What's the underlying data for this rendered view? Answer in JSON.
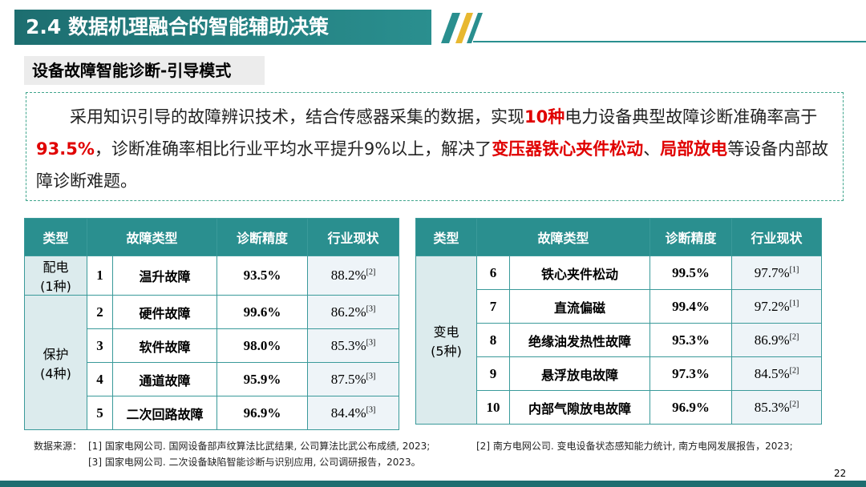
{
  "header": {
    "title": "2.4 数据机理融合的智能辅助决策",
    "subtitle": "设备故障智能诊断-引导模式"
  },
  "paragraph": {
    "segments": [
      {
        "text": "采用知识引导的故障辨识技术，结合传感器采集的数据，实现",
        "highlight": false
      },
      {
        "text": "10种",
        "highlight": true
      },
      {
        "text": "电力设备典型故障诊断准确率高于",
        "highlight": false
      },
      {
        "text": "93.5%",
        "highlight": true
      },
      {
        "text": "，诊断准确率相比行业平均水平提升9%以上，解决了",
        "highlight": false
      },
      {
        "text": "变压器铁心夹件松动",
        "highlight": true
      },
      {
        "text": "、",
        "highlight": false
      },
      {
        "text": "局部放电",
        "highlight": true
      },
      {
        "text": "等设备内部故障诊断难题。",
        "highlight": false
      }
    ]
  },
  "tables": [
    {
      "header": [
        "类型",
        "故障类型",
        "诊断精度",
        "行业现状"
      ],
      "groups": [
        {
          "label": [
            "配电",
            "(1种)"
          ],
          "rows": [
            {
              "no": "1",
              "fault": "温升故障",
              "accuracy": "93.5%",
              "industry": "88.2%",
              "ref": "[2]"
            }
          ]
        },
        {
          "label": [
            "保护",
            "(4种)"
          ],
          "rows": [
            {
              "no": "2",
              "fault": "硬件故障",
              "accuracy": "99.6%",
              "industry": "86.2%",
              "ref": "[3]"
            },
            {
              "no": "3",
              "fault": "软件故障",
              "accuracy": "98.0%",
              "industry": "85.3%",
              "ref": "[3]"
            },
            {
              "no": "4",
              "fault": "通道故障",
              "accuracy": "95.9%",
              "industry": "87.5%",
              "ref": "[3]"
            },
            {
              "no": "5",
              "fault": "二次回路故障",
              "accuracy": "96.9%",
              "industry": "84.4%",
              "ref": "[3]"
            }
          ]
        }
      ]
    },
    {
      "header": [
        "类型",
        "故障类型",
        "诊断精度",
        "行业现状"
      ],
      "groups": [
        {
          "label": [
            "变电",
            "(5种)"
          ],
          "rows": [
            {
              "no": "6",
              "fault": "铁心夹件松动",
              "accuracy": "99.5%",
              "industry": "97.7%",
              "ref": "[1]"
            },
            {
              "no": "7",
              "fault": "直流偏磁",
              "accuracy": "99.4%",
              "industry": "97.2%",
              "ref": "[1]"
            },
            {
              "no": "8",
              "fault": "绝缘油发热性故障",
              "accuracy": "95.3%",
              "industry": "86.9%",
              "ref": "[2]"
            },
            {
              "no": "9",
              "fault": "悬浮放电故障",
              "accuracy": "97.3%",
              "industry": "84.5%",
              "ref": "[2]"
            },
            {
              "no": "10",
              "fault": "内部气隙放电故障",
              "accuracy": "96.9%",
              "industry": "85.3%",
              "ref": "[2]"
            }
          ]
        }
      ]
    }
  ],
  "sources": {
    "label": "数据来源：",
    "items": [
      "[1] 国家电网公司. 国网设备部声纹算法比武结果, 公司算法比武公布成绩, 2023;",
      "[2] 南方电网公司. 变电设备状态感知能力统计, 南方电网发展报告，2023;",
      "[3] 国家电网公司. 二次设备缺陷智能诊断与识别应用, 公司调研报告，2023。"
    ]
  },
  "page_number": "22"
}
